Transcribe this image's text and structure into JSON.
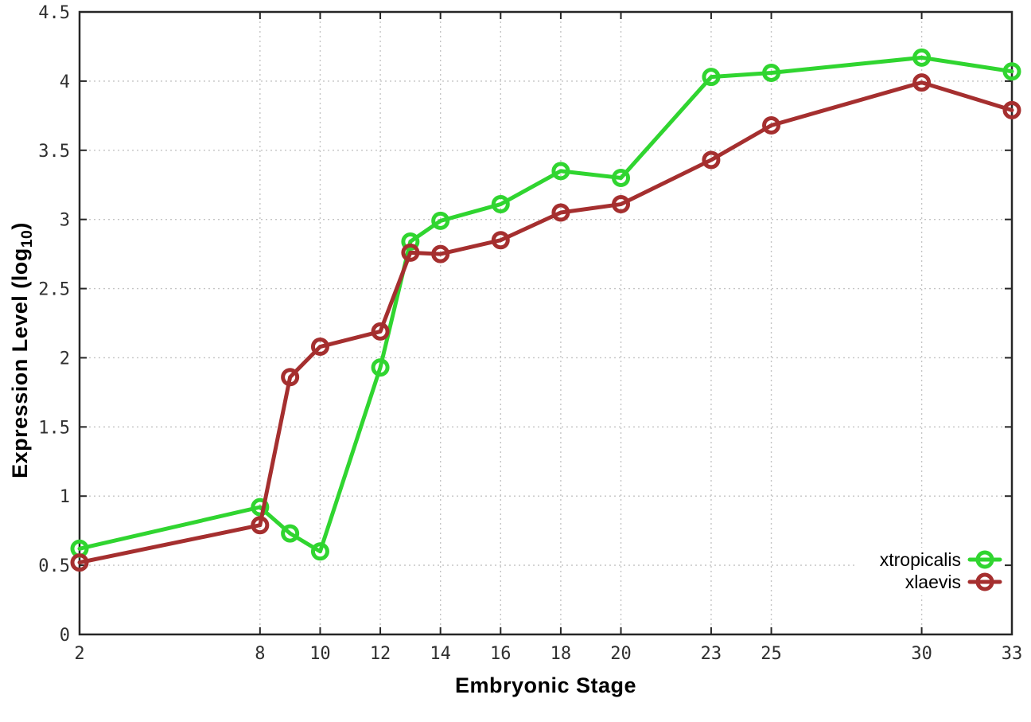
{
  "figure": {
    "xlabel": "Embryonic Stage",
    "ylabel_pre": "Expression Level (log",
    "ylabel_sub": "10",
    "ylabel_post": ")"
  },
  "chart_data": {
    "type": "line",
    "title": "",
    "xlabel": "Embryonic Stage",
    "ylabel": "Expression Level (log10)",
    "xlim": [
      2,
      33
    ],
    "ylim": [
      0,
      4.5
    ],
    "grid": true,
    "legend_position": "inside lower right",
    "x": [
      2,
      8,
      9,
      10,
      12,
      13,
      14,
      16,
      18,
      20,
      23,
      25,
      30,
      33
    ],
    "x_ticks": [
      {
        "v": 2,
        "label": "2"
      },
      {
        "v": 8,
        "label": "8"
      },
      {
        "v": 10,
        "label": "10"
      },
      {
        "v": 12,
        "label": "12"
      },
      {
        "v": 14,
        "label": "14"
      },
      {
        "v": 16,
        "label": "16"
      },
      {
        "v": 18,
        "label": "18"
      },
      {
        "v": 20,
        "label": "20"
      },
      {
        "v": 23,
        "label": "23"
      },
      {
        "v": 25,
        "label": "25"
      },
      {
        "v": 30,
        "label": "30"
      },
      {
        "v": 33,
        "label": "33"
      }
    ],
    "y_ticks": [
      {
        "v": 0,
        "label": "0"
      },
      {
        "v": 0.5,
        "label": "0.5"
      },
      {
        "v": 1,
        "label": "1"
      },
      {
        "v": 1.5,
        "label": "1.5"
      },
      {
        "v": 2,
        "label": "2"
      },
      {
        "v": 2.5,
        "label": "2.5"
      },
      {
        "v": 3,
        "label": "3"
      },
      {
        "v": 3.5,
        "label": "3.5"
      },
      {
        "v": 4,
        "label": "4"
      },
      {
        "v": 4.5,
        "label": "4.5"
      }
    ],
    "series": [
      {
        "name": "xtropicalis",
        "color": "#30d530",
        "marker": "open-circle",
        "values": [
          0.62,
          0.92,
          0.73,
          0.6,
          1.93,
          2.84,
          2.99,
          3.11,
          3.35,
          3.3,
          4.03,
          4.06,
          4.17,
          4.07
        ]
      },
      {
        "name": "xlaevis",
        "color": "#a52f2f",
        "marker": "open-circle",
        "values": [
          0.52,
          0.79,
          1.86,
          2.08,
          2.19,
          2.76,
          2.75,
          2.85,
          3.05,
          3.11,
          3.43,
          3.68,
          3.99,
          3.79
        ]
      }
    ]
  },
  "style": {
    "background": "#ffffff",
    "grid_color": "#c4c4c4",
    "axis_color": "#262626",
    "tick_label_color": "#303030",
    "text_color": "#000000",
    "line_width": 5,
    "marker_radius": 9,
    "marker_stroke": 5
  }
}
